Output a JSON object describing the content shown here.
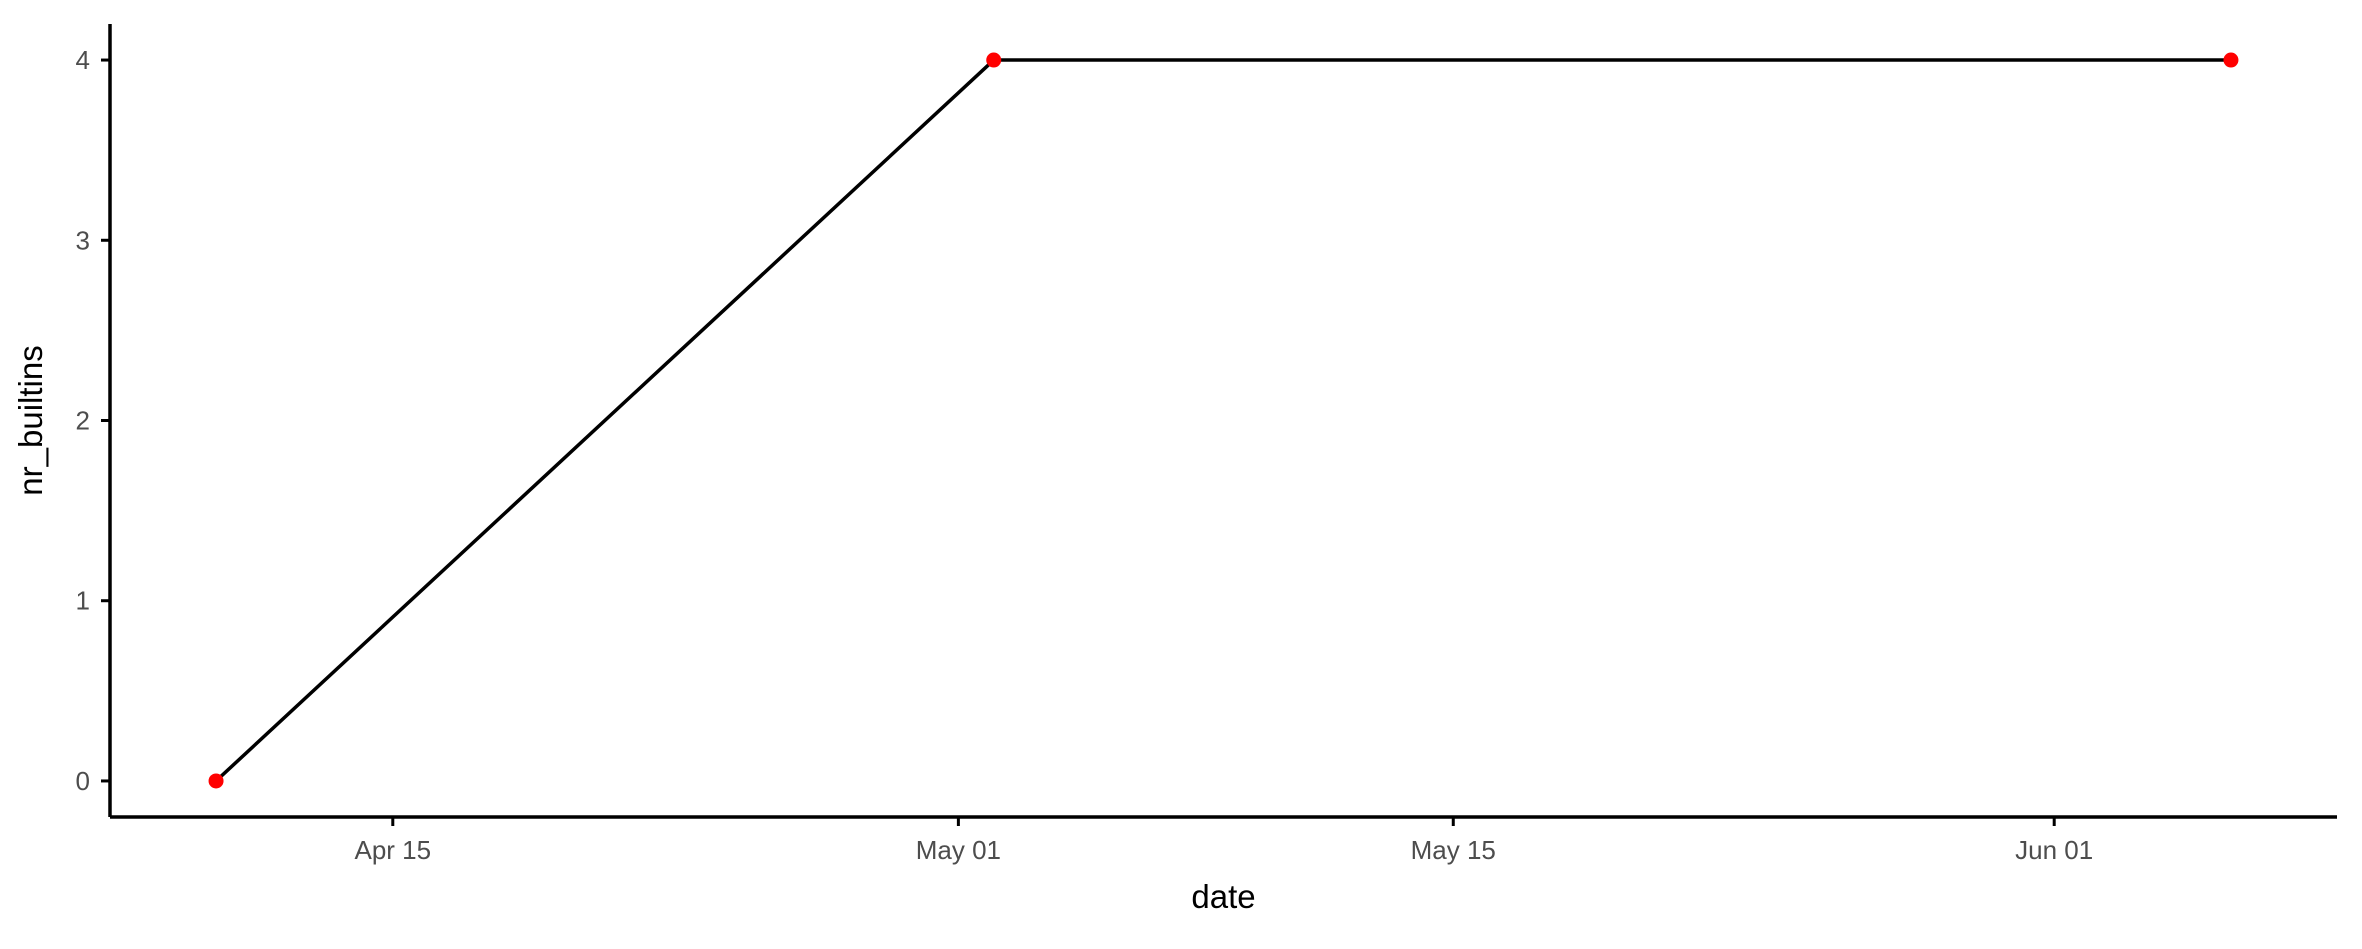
{
  "chart_data": {
    "type": "line",
    "title": "",
    "xlabel": "date",
    "ylabel": "nr_builtins",
    "x_type": "date",
    "x": [
      "2024-04-10",
      "2024-05-02",
      "2024-06-06"
    ],
    "y": [
      0,
      4,
      4
    ],
    "xlim": [
      "2024-04-07",
      "2024-06-09"
    ],
    "ylim": [
      -0.2,
      4.2
    ],
    "x_ticks": [
      {
        "value": "2024-04-15",
        "label": "Apr 15"
      },
      {
        "value": "2024-05-01",
        "label": "May 01"
      },
      {
        "value": "2024-05-15",
        "label": "May 15"
      },
      {
        "value": "2024-06-01",
        "label": "Jun 01"
      }
    ],
    "y_ticks": [
      {
        "value": 0,
        "label": "0"
      },
      {
        "value": 1,
        "label": "1"
      },
      {
        "value": 2,
        "label": "2"
      },
      {
        "value": 3,
        "label": "3"
      },
      {
        "value": 4,
        "label": "4"
      }
    ],
    "grid": false,
    "legend": "none",
    "colors": {
      "line": "#000000",
      "points": "#ff0000"
    }
  }
}
